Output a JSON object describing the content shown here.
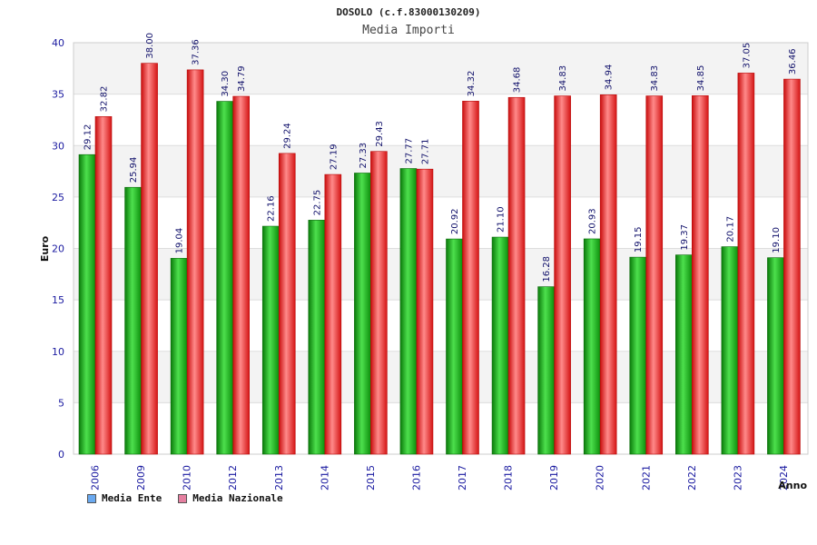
{
  "chart_data": {
    "type": "bar",
    "title": "DOSOLO (c.f.83000130209)",
    "subtitle": "Media Importi",
    "xlabel": "Anno",
    "ylabel": "Euro",
    "ylim": [
      0,
      40
    ],
    "yticks": [
      "0",
      "5",
      "10",
      "15",
      "20",
      "25",
      "30",
      "35",
      "40"
    ],
    "grid": true,
    "categories": [
      "2006",
      "2009",
      "2010",
      "2012",
      "2013",
      "2014",
      "2015",
      "2016",
      "2017",
      "2018",
      "2019",
      "2020",
      "2021",
      "2022",
      "2023",
      "2024"
    ],
    "series": [
      {
        "name": "Media Ente",
        "values": [
          29.12,
          25.94,
          19.04,
          34.3,
          22.16,
          22.75,
          27.33,
          27.77,
          20.92,
          21.1,
          16.28,
          20.93,
          19.15,
          19.37,
          20.17,
          19.1
        ],
        "labels": [
          "29.12",
          "25.94",
          "19.04",
          "34.30",
          "22.16",
          "22.75",
          "27.33",
          "27.77",
          "20.92",
          "21.10",
          "16.28",
          "20.93",
          "19.15",
          "19.37",
          "20.17",
          "19.10"
        ],
        "color": "#1bb51b",
        "legend_color": "#6aa9f0"
      },
      {
        "name": "Media Nazionale",
        "values": [
          32.82,
          38.0,
          37.36,
          34.79,
          29.24,
          27.19,
          29.43,
          27.71,
          34.32,
          34.68,
          34.83,
          34.94,
          34.83,
          34.85,
          37.05,
          36.46
        ],
        "labels": [
          "32.82",
          "38.00",
          "37.36",
          "34.79",
          "29.24",
          "27.19",
          "29.43",
          "27.71",
          "34.32",
          "34.68",
          "34.83",
          "34.94",
          "34.83",
          "34.85",
          "37.05",
          "36.46"
        ],
        "color": "#ee2a2a",
        "legend_color": "#e57fa0"
      }
    ]
  }
}
